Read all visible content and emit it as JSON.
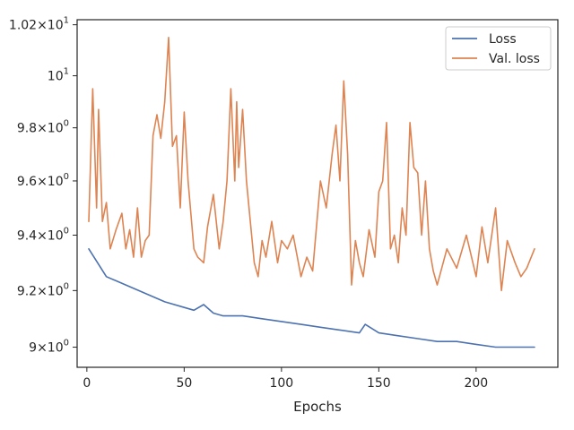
{
  "chart_data": {
    "type": "line",
    "xlabel": "Epochs",
    "ylabel": "",
    "title": "",
    "y_scale": "log",
    "xlim": [
      -5,
      242
    ],
    "ylim": [
      8.93,
      10.22
    ],
    "x_ticks": [
      0,
      50,
      100,
      150,
      200
    ],
    "x_tick_labels": [
      "0",
      "50",
      "100",
      "150",
      "200"
    ],
    "y_ticks": [
      9.0,
      9.2,
      9.4,
      9.6,
      9.8,
      10.0,
      10.2
    ],
    "y_tick_labels": [
      {
        "mant": "9",
        "exp": "0"
      },
      {
        "mant": "9.2",
        "exp": "0"
      },
      {
        "mant": "9.4",
        "exp": "0"
      },
      {
        "mant": "9.6",
        "exp": "0"
      },
      {
        "mant": "9.8",
        "exp": "0"
      },
      {
        "mant": "",
        "exp": "1"
      },
      {
        "mant": "1.02",
        "exp": "1"
      }
    ],
    "legend_position": "top-right",
    "series": [
      {
        "name": "Loss",
        "color": "#4c72b0",
        "x": [
          1,
          10,
          20,
          30,
          40,
          50,
          55,
          60,
          65,
          70,
          80,
          90,
          100,
          110,
          120,
          130,
          140,
          143,
          150,
          160,
          170,
          180,
          190,
          200,
          210,
          220,
          230
        ],
        "y": [
          9.35,
          9.25,
          9.22,
          9.19,
          9.16,
          9.14,
          9.13,
          9.15,
          9.12,
          9.11,
          9.11,
          9.1,
          9.09,
          9.08,
          9.07,
          9.06,
          9.05,
          9.08,
          9.05,
          9.04,
          9.03,
          9.02,
          9.02,
          9.01,
          9.0,
          9.0,
          9.0
        ]
      },
      {
        "name": "Val. loss",
        "color": "#dd8452",
        "x": [
          1,
          3,
          5,
          6,
          8,
          10,
          12,
          15,
          18,
          20,
          22,
          24,
          26,
          28,
          30,
          32,
          34,
          36,
          38,
          40,
          42,
          44,
          46,
          48,
          50,
          52,
          55,
          57,
          60,
          62,
          65,
          68,
          70,
          72,
          74,
          76,
          77,
          78,
          80,
          82,
          84,
          86,
          88,
          90,
          92,
          95,
          98,
          100,
          103,
          106,
          110,
          113,
          116,
          120,
          123,
          126,
          128,
          130,
          132,
          134,
          136,
          138,
          140,
          142,
          145,
          148,
          150,
          152,
          154,
          156,
          158,
          160,
          162,
          164,
          166,
          168,
          170,
          172,
          174,
          176,
          178,
          180,
          185,
          190,
          195,
          200,
          203,
          206,
          210,
          213,
          216,
          220,
          223,
          226,
          230
        ],
        "y": [
          9.45,
          9.95,
          9.5,
          9.87,
          9.45,
          9.52,
          9.35,
          9.42,
          9.48,
          9.35,
          9.42,
          9.32,
          9.5,
          9.32,
          9.38,
          9.4,
          9.77,
          9.85,
          9.76,
          9.9,
          10.15,
          9.73,
          9.77,
          9.5,
          9.86,
          9.6,
          9.35,
          9.32,
          9.3,
          9.43,
          9.55,
          9.35,
          9.45,
          9.6,
          9.95,
          9.6,
          9.9,
          9.65,
          9.87,
          9.6,
          9.45,
          9.3,
          9.25,
          9.38,
          9.32,
          9.45,
          9.3,
          9.38,
          9.35,
          9.4,
          9.25,
          9.32,
          9.27,
          9.6,
          9.5,
          9.7,
          9.81,
          9.6,
          9.98,
          9.7,
          9.22,
          9.38,
          9.3,
          9.25,
          9.42,
          9.32,
          9.56,
          9.6,
          9.82,
          9.35,
          9.4,
          9.3,
          9.5,
          9.4,
          9.82,
          9.65,
          9.63,
          9.4,
          9.6,
          9.35,
          9.27,
          9.22,
          9.35,
          9.28,
          9.4,
          9.25,
          9.43,
          9.3,
          9.5,
          9.2,
          9.38,
          9.3,
          9.25,
          9.28,
          9.35
        ]
      }
    ]
  }
}
